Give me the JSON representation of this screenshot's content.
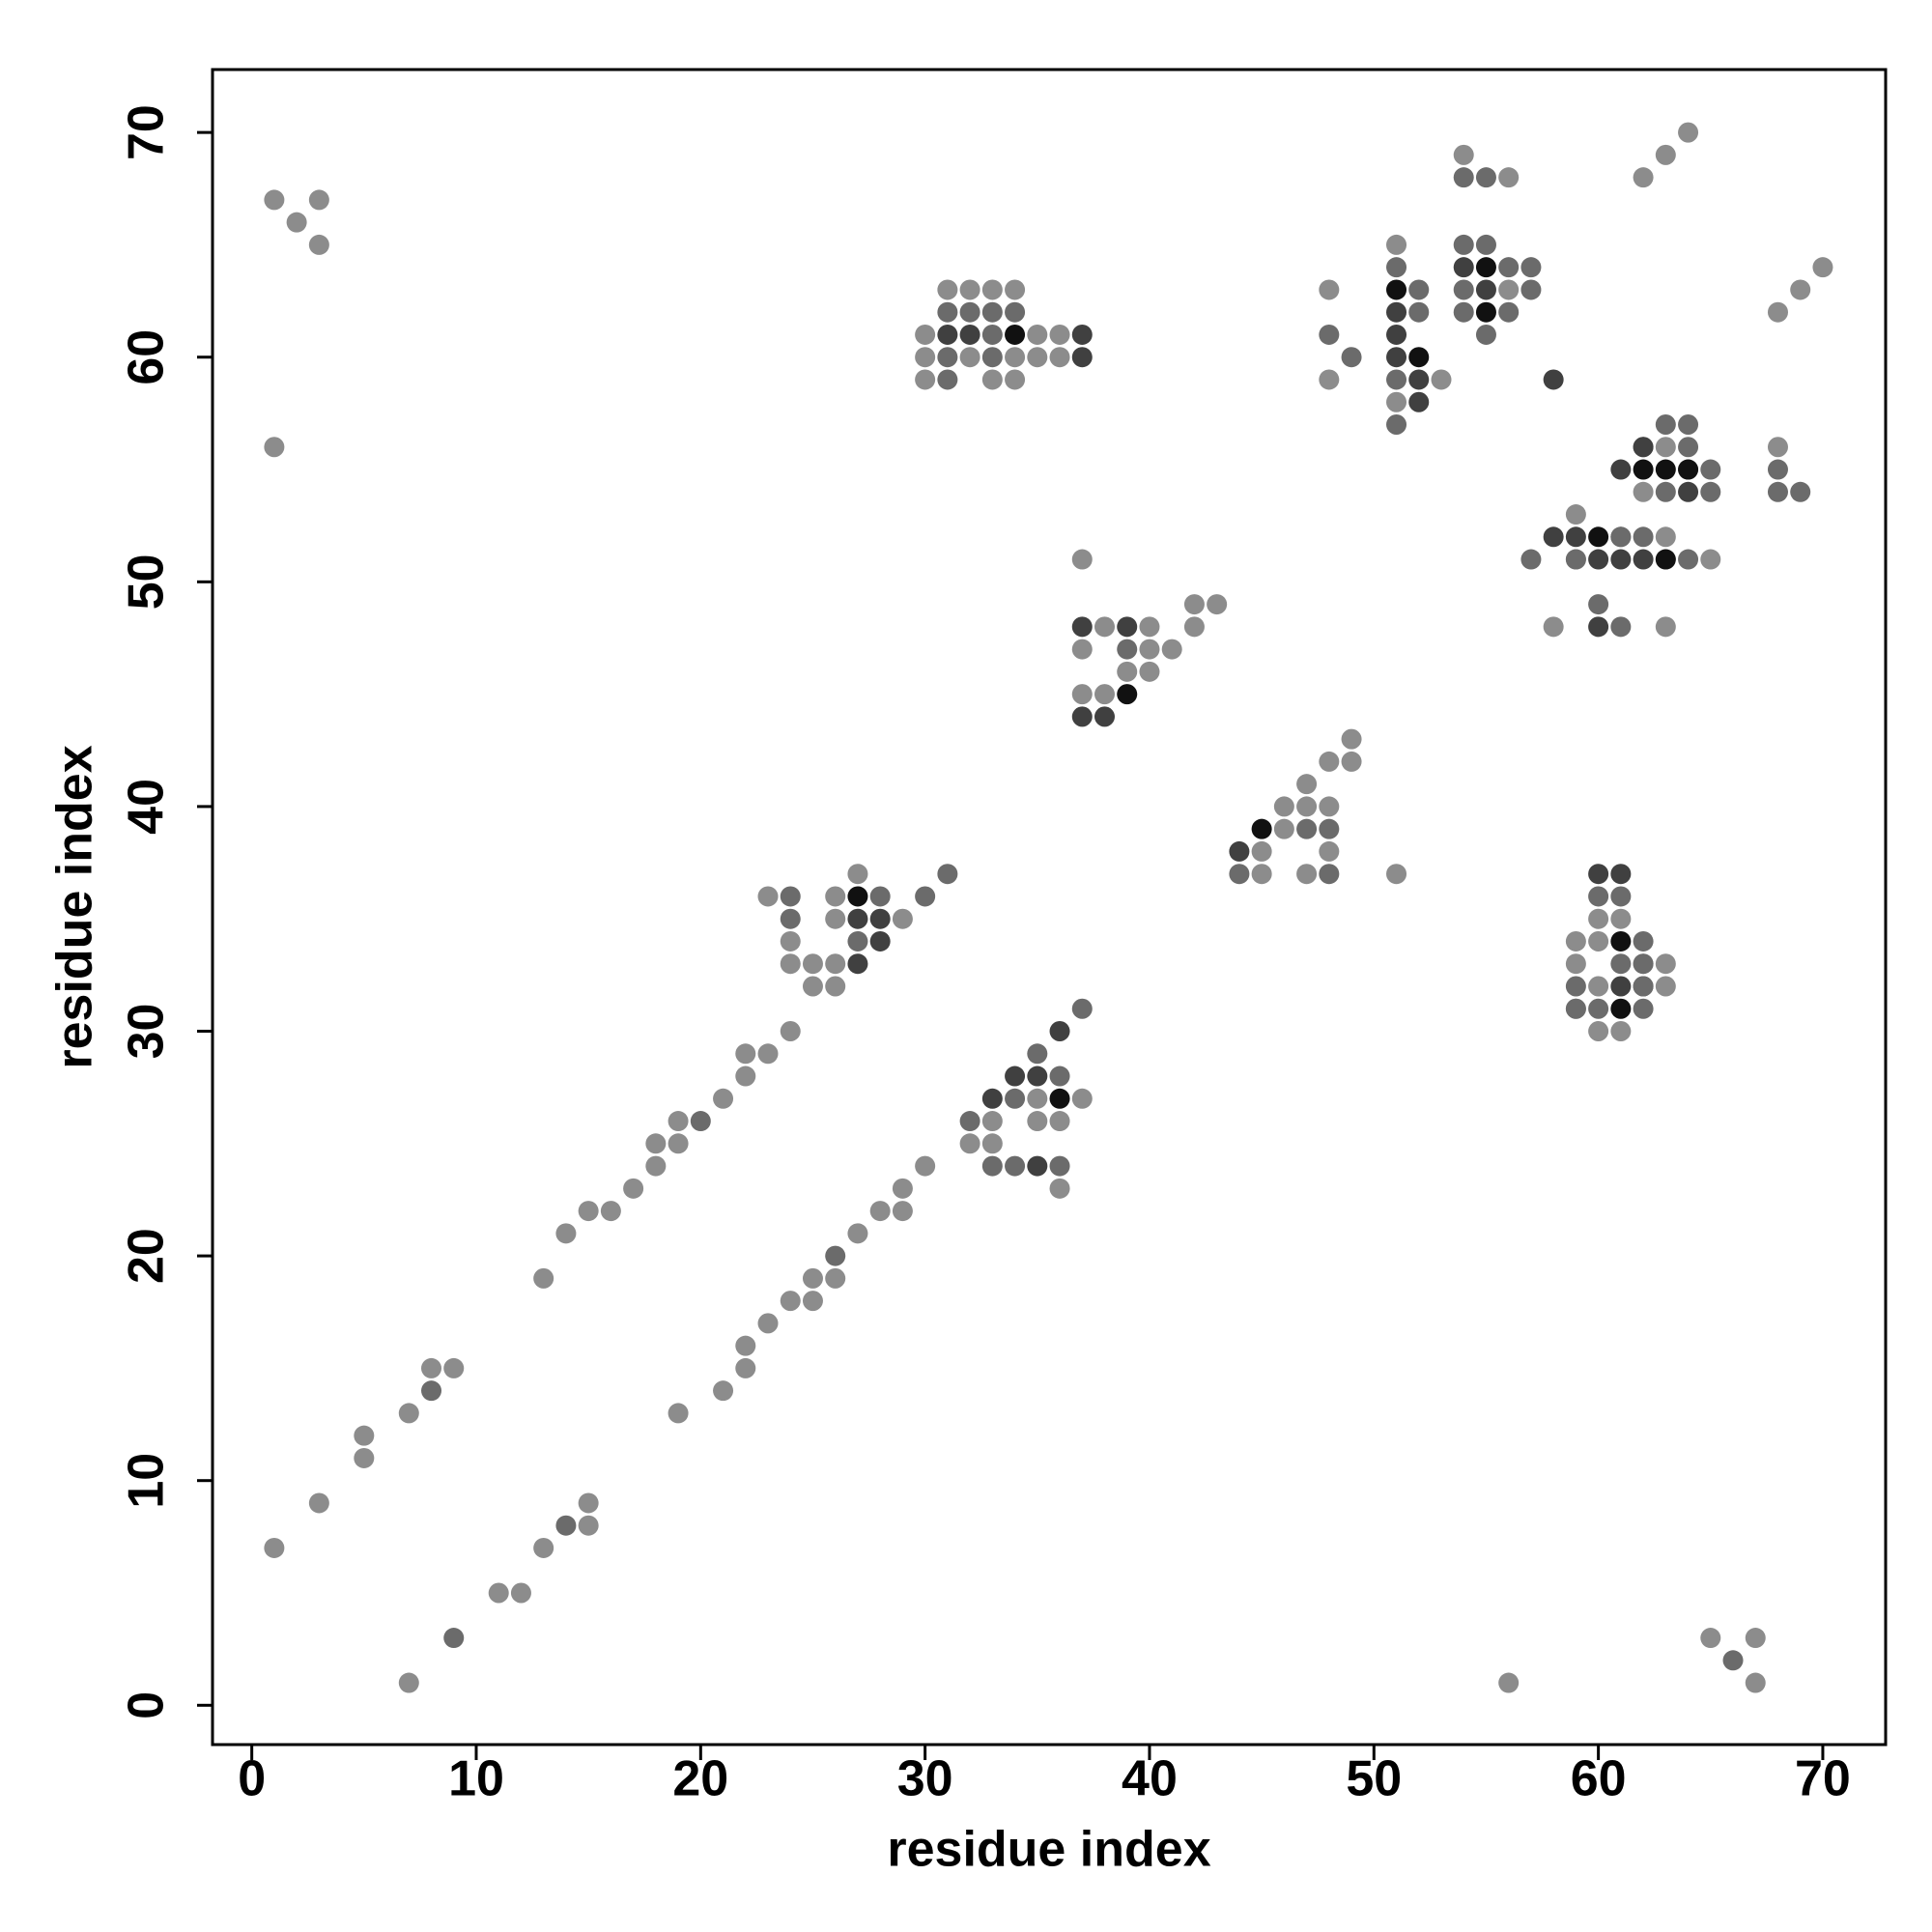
{
  "chart_data": {
    "type": "scatter",
    "xlabel": "residue index",
    "ylabel": "residue index",
    "xlim": [
      -1.75,
      72.8
    ],
    "ylim": [
      -1.75,
      72.8
    ],
    "xticks": [
      0,
      10,
      20,
      30,
      40,
      50,
      60,
      70
    ],
    "yticks": [
      0,
      10,
      20,
      30,
      40,
      50,
      60,
      70
    ],
    "series": [
      {
        "color": "#8c8c8c",
        "x": [
          1,
          3,
          2,
          3,
          1,
          1,
          3,
          5,
          5,
          7,
          8,
          9,
          13,
          14,
          15,
          16,
          17,
          18,
          19,
          18,
          19,
          21,
          22,
          23,
          22,
          24,
          23,
          24,
          24,
          25,
          25,
          26,
          26,
          26,
          26,
          27,
          29,
          7,
          11,
          12,
          13,
          15,
          15,
          19,
          21,
          22,
          22,
          23,
          24,
          25,
          25,
          26,
          27,
          28,
          29,
          29,
          30,
          35,
          37,
          33,
          35,
          36,
          32,
          33,
          36,
          31,
          32,
          33,
          34,
          30,
          35,
          36,
          30,
          32,
          34,
          35,
          36,
          30,
          33,
          34,
          37,
          42,
          43,
          38,
          40,
          42,
          37,
          40,
          41,
          39,
          40,
          37,
          38,
          49,
          48,
          49,
          47,
          46,
          47,
          48,
          46,
          45,
          48,
          45,
          47,
          51,
          51,
          48,
          48,
          53,
          51,
          54,
          56,
          56,
          62,
          63,
          64,
          70,
          69,
          68,
          63,
          62,
          59,
          63,
          58,
          63,
          65,
          59,
          63,
          68,
          60,
          61,
          59,
          60,
          62,
          63,
          59,
          60,
          62,
          63,
          59,
          60,
          61,
          56,
          65,
          67,
          67
        ],
        "y": [
          67,
          67,
          66,
          65,
          56,
          7,
          9,
          12,
          11,
          13,
          15,
          15,
          19,
          21,
          22,
          22,
          23,
          25,
          26,
          24,
          25,
          27,
          29,
          29,
          28,
          30,
          36,
          34,
          33,
          33,
          32,
          33,
          32,
          36,
          35,
          37,
          35,
          1,
          5,
          5,
          7,
          9,
          8,
          13,
          14,
          15,
          16,
          17,
          18,
          18,
          19,
          19,
          21,
          22,
          22,
          23,
          24,
          27,
          27,
          26,
          26,
          26,
          25,
          25,
          23,
          63,
          63,
          63,
          63,
          61,
          61,
          61,
          60,
          60,
          60,
          60,
          60,
          59,
          59,
          59,
          51,
          49,
          49,
          48,
          48,
          48,
          47,
          47,
          47,
          46,
          46,
          45,
          45,
          43,
          42,
          42,
          41,
          40,
          40,
          40,
          39,
          38,
          38,
          37,
          37,
          37,
          65,
          63,
          59,
          59,
          58,
          69,
          68,
          63,
          68,
          69,
          70,
          64,
          63,
          62,
          56,
          54,
          53,
          52,
          48,
          48,
          51,
          51,
          51,
          56,
          35,
          35,
          34,
          34,
          33,
          33,
          33,
          32,
          32,
          32,
          31,
          30,
          30,
          1,
          3,
          3,
          1
        ]
      },
      {
        "color": "#6b6b6b",
        "x": [
          8,
          20,
          24,
          24,
          28,
          27,
          30,
          31,
          9,
          14,
          26,
          37,
          35,
          36,
          34,
          32,
          33,
          34,
          36,
          31,
          32,
          33,
          34,
          33,
          31,
          33,
          31,
          39,
          47,
          48,
          44,
          48,
          51,
          52,
          52,
          48,
          49,
          51,
          51,
          54,
          55,
          54,
          55,
          56,
          57,
          54,
          57,
          54,
          56,
          55,
          63,
          64,
          64,
          65,
          61,
          62,
          65,
          63,
          64,
          61,
          62,
          57,
          59,
          64,
          60,
          61,
          68,
          68,
          69,
          60,
          61,
          62,
          62,
          61,
          62,
          59,
          62,
          59,
          60,
          62,
          66
        ],
        "y": [
          14,
          26,
          36,
          35,
          36,
          34,
          36,
          37,
          3,
          8,
          20,
          31,
          29,
          28,
          27,
          26,
          24,
          24,
          24,
          62,
          62,
          62,
          62,
          61,
          60,
          60,
          59,
          47,
          39,
          39,
          37,
          37,
          64,
          63,
          62,
          61,
          60,
          59,
          57,
          68,
          68,
          65,
          65,
          64,
          64,
          63,
          63,
          62,
          62,
          61,
          57,
          57,
          56,
          55,
          52,
          52,
          54,
          54,
          55,
          52,
          56,
          51,
          51,
          51,
          49,
          48,
          55,
          54,
          54,
          36,
          36,
          34,
          33,
          33,
          32,
          32,
          32,
          31,
          31,
          31,
          2
        ]
      },
      {
        "color": "#404040",
        "x": [
          27,
          28,
          28,
          27,
          36,
          34,
          35,
          33,
          35,
          31,
          32,
          37,
          37,
          37,
          39,
          37,
          38,
          44,
          51,
          51,
          51,
          52,
          58,
          52,
          54,
          55,
          62,
          61,
          64,
          58,
          59,
          60,
          61,
          62,
          60,
          60,
          61,
          61
        ],
        "y": [
          35,
          35,
          34,
          33,
          30,
          28,
          28,
          27,
          24,
          61,
          61,
          61,
          60,
          48,
          48,
          44,
          44,
          38,
          62,
          61,
          60,
          59,
          59,
          58,
          64,
          63,
          56,
          55,
          54,
          52,
          52,
          51,
          51,
          51,
          48,
          37,
          37,
          32
        ],
        "note_shade": null
      },
      {
        "color": "#111111",
        "x": [
          27,
          36,
          34,
          39,
          45,
          51,
          52,
          55,
          55,
          62,
          63,
          64,
          60,
          63,
          61,
          61
        ],
        "y": [
          36,
          27,
          61,
          45,
          39,
          63,
          60,
          64,
          62,
          55,
          55,
          55,
          52,
          51,
          34,
          31
        ]
      }
    ]
  }
}
